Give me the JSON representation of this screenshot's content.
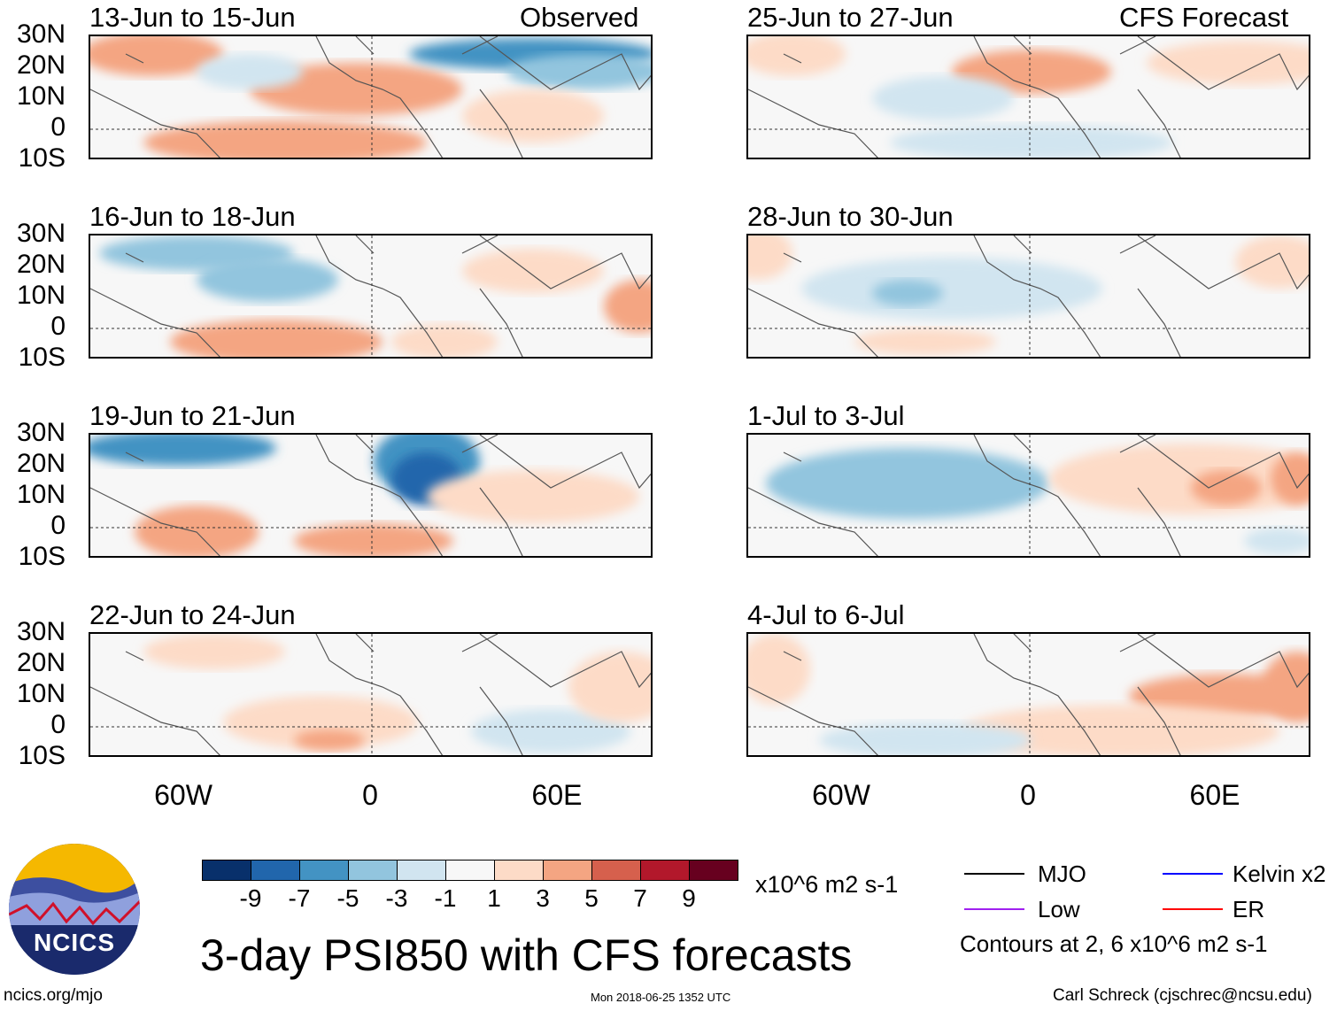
{
  "title": "3-day PSI850 with CFS forecasts",
  "left_header": "Observed",
  "right_header": "CFS Forecast",
  "panels_left": [
    "13-Jun to 15-Jun",
    "16-Jun to 18-Jun",
    "19-Jun to 21-Jun",
    "22-Jun to 24-Jun"
  ],
  "panels_right": [
    "25-Jun to 27-Jun",
    "28-Jun to 30-Jun",
    "1-Jul to 3-Jul",
    "4-Jul to 6-Jul"
  ],
  "lat_labels": [
    "30N",
    "20N",
    "10N",
    "0",
    "10S"
  ],
  "lon_labels": [
    "60W",
    "0",
    "60E"
  ],
  "colorbar": {
    "colors": [
      "#08306b",
      "#2166ac",
      "#4393c3",
      "#92c5de",
      "#d1e5f0",
      "#f7f7f7",
      "#fddbc7",
      "#f4a582",
      "#d6604d",
      "#b2182b",
      "#67001f"
    ],
    "labels": [
      "-9",
      "-7",
      "-5",
      "-3",
      "-1",
      "1",
      "3",
      "5",
      "7",
      "9"
    ],
    "units": "x10^6 m2 s-1"
  },
  "legend": {
    "items": [
      {
        "label": "MJO",
        "color": "#000000"
      },
      {
        "label": "Kelvin x2",
        "color": "#0000ff"
      },
      {
        "label": "Low",
        "color": "#a020f0"
      },
      {
        "label": "ER",
        "color": "#ff0000"
      }
    ],
    "contours_note": "Contours at 2, 6 x10^6 m2 s-1"
  },
  "logo_text": "NCICS",
  "footer": {
    "url": "ncics.org/mjo",
    "timestamp": "Mon 2018-06-25 1352 UTC",
    "author": "Carl Schreck (cjschrec@ncsu.edu)"
  }
}
